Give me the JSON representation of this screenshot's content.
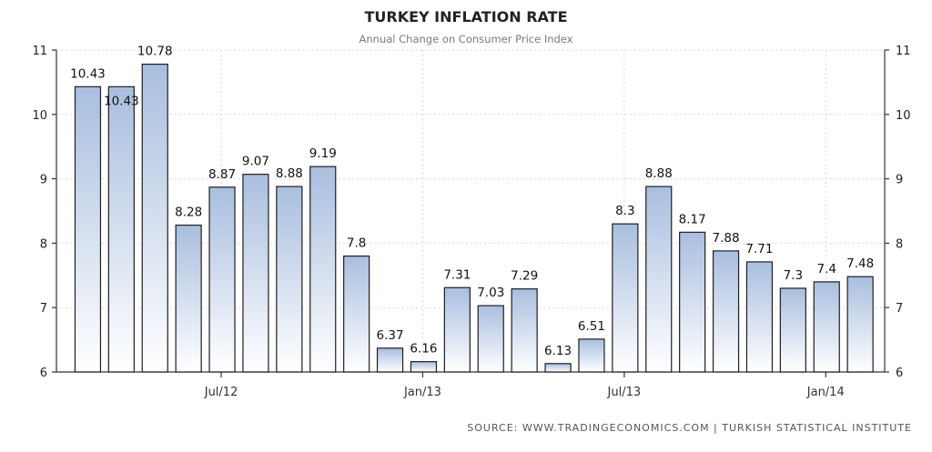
{
  "chart_data": {
    "type": "bar",
    "title": "TURKEY INFLATION RATE",
    "subtitle": "Annual Change on Consumer Price Index",
    "source": "SOURCE:  WWW.TRADINGECONOMICS.COM  |  TURKISH STATISTICAL INSTITUTE",
    "ylim": [
      6,
      11
    ],
    "yticks": [
      "6",
      "7",
      "8",
      "9",
      "10",
      "11"
    ],
    "xtick_labels": [
      {
        "label": "Jul/12",
        "index": 4
      },
      {
        "label": "Jan/13",
        "index": 10
      },
      {
        "label": "Jul/13",
        "index": 16
      },
      {
        "label": "Jan/14",
        "index": 22
      }
    ],
    "values": [
      10.43,
      10.43,
      10.78,
      8.28,
      8.87,
      9.07,
      8.88,
      9.19,
      7.8,
      6.37,
      6.16,
      7.31,
      7.03,
      7.29,
      6.13,
      6.51,
      8.3,
      8.88,
      8.17,
      7.88,
      7.71,
      7.3,
      7.4,
      7.48
    ],
    "labels": [
      "10.43",
      "10.43",
      "10.78",
      "8.28",
      "8.87",
      "9.07",
      "8.88",
      "9.19",
      "7.8",
      "6.37",
      "6.16",
      "7.31",
      "7.03",
      "7.29",
      "6.13",
      "6.51",
      "8.3",
      "8.88",
      "8.17",
      "7.88",
      "7.71",
      "7.3",
      "7.4",
      "7.48"
    ],
    "grid": true,
    "legend": "none",
    "colors": {
      "bar_top": "#a9bedf",
      "bar_bottom": "#ffffff",
      "bar_edge": "#1e1e1e"
    }
  }
}
